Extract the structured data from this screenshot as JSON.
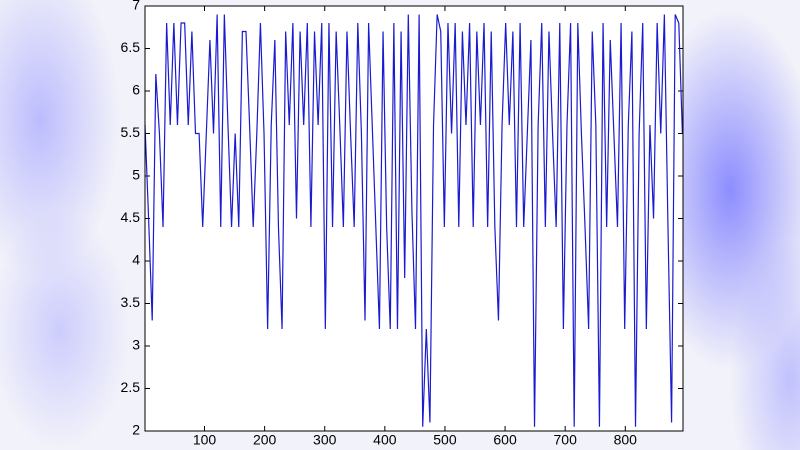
{
  "chart_data": {
    "type": "line",
    "x": [
      1,
      7,
      13,
      19,
      25,
      31,
      37,
      43,
      49,
      55,
      61,
      67,
      73,
      79,
      85,
      91,
      97,
      103,
      109,
      115,
      121,
      127,
      133,
      139,
      145,
      151,
      157,
      163,
      169,
      175,
      181,
      187,
      193,
      199,
      205,
      211,
      217,
      223,
      229,
      235,
      241,
      247,
      253,
      259,
      265,
      271,
      277,
      283,
      289,
      295,
      301,
      307,
      313,
      319,
      325,
      331,
      337,
      343,
      349,
      355,
      361,
      367,
      373,
      379,
      385,
      391,
      397,
      403,
      409,
      415,
      421,
      427,
      433,
      439,
      445,
      451,
      457,
      463,
      469,
      475,
      481,
      487,
      493,
      499,
      505,
      511,
      517,
      523,
      529,
      535,
      541,
      547,
      553,
      559,
      565,
      571,
      577,
      583,
      589,
      595,
      601,
      607,
      613,
      619,
      625,
      631,
      637,
      643,
      649,
      655,
      661,
      667,
      673,
      679,
      685,
      691,
      697,
      703,
      709,
      715,
      721,
      727,
      733,
      739,
      745,
      751,
      757,
      763,
      769,
      775,
      781,
      787,
      793,
      799,
      805,
      811,
      817,
      823,
      829,
      835,
      841,
      847,
      853,
      859,
      865,
      871,
      877,
      883,
      889,
      895
    ],
    "series": [
      {
        "color": "#1a1ad0",
        "values": [
          5.6,
          4.5,
          3.3,
          6.2,
          5.5,
          4.4,
          6.8,
          5.6,
          6.8,
          5.6,
          6.8,
          6.8,
          5.6,
          6.7,
          5.5,
          5.5,
          4.4,
          5.5,
          6.6,
          5.5,
          6.9,
          4.4,
          6.9,
          5.6,
          4.4,
          5.5,
          4.4,
          6.7,
          6.7,
          5.6,
          4.4,
          5.5,
          6.8,
          5.5,
          3.2,
          5.6,
          6.6,
          4.4,
          3.2,
          6.7,
          5.6,
          6.8,
          4.5,
          6.7,
          5.6,
          6.8,
          4.4,
          6.7,
          5.6,
          6.8,
          3.2,
          6.8,
          4.4,
          6.7,
          5.6,
          4.4,
          6.7,
          5.5,
          4.4,
          6.8,
          5.5,
          3.3,
          6.8,
          5.6,
          4.4,
          3.2,
          6.7,
          4.4,
          3.2,
          6.8,
          3.2,
          6.7,
          3.8,
          6.9,
          4.6,
          3.2,
          6.9,
          2.05,
          3.2,
          2.1,
          5.6,
          6.9,
          6.7,
          4.4,
          6.8,
          5.5,
          6.8,
          4.4,
          6.7,
          5.6,
          6.8,
          4.4,
          6.7,
          5.6,
          6.8,
          4.4,
          6.7,
          4.4,
          3.3,
          5.6,
          6.8,
          5.6,
          6.7,
          4.4,
          6.8,
          4.4,
          5.5,
          6.6,
          2.05,
          5.6,
          6.8,
          4.4,
          6.7,
          5.5,
          4.4,
          6.8,
          3.2,
          5.6,
          6.8,
          2.05,
          6.8,
          5.5,
          4.4,
          3.2,
          6.7,
          5.6,
          2.05,
          6.8,
          4.4,
          6.6,
          5.5,
          4.4,
          6.8,
          3.2,
          5.6,
          6.7,
          2.05,
          5.5,
          6.8,
          3.2,
          5.6,
          4.5,
          6.8,
          5.5,
          6.9,
          4.4,
          2.1,
          6.9,
          6.8,
          5.5
        ]
      }
    ],
    "xlim": [
      1,
      896
    ],
    "xticks": [
      100,
      200,
      300,
      400,
      500,
      600,
      700,
      800
    ],
    "ylim": [
      2,
      7
    ],
    "yticks": [
      2,
      2.5,
      3,
      3.5,
      4,
      4.5,
      5,
      5.5,
      6,
      6.5,
      7
    ],
    "grid": false
  }
}
